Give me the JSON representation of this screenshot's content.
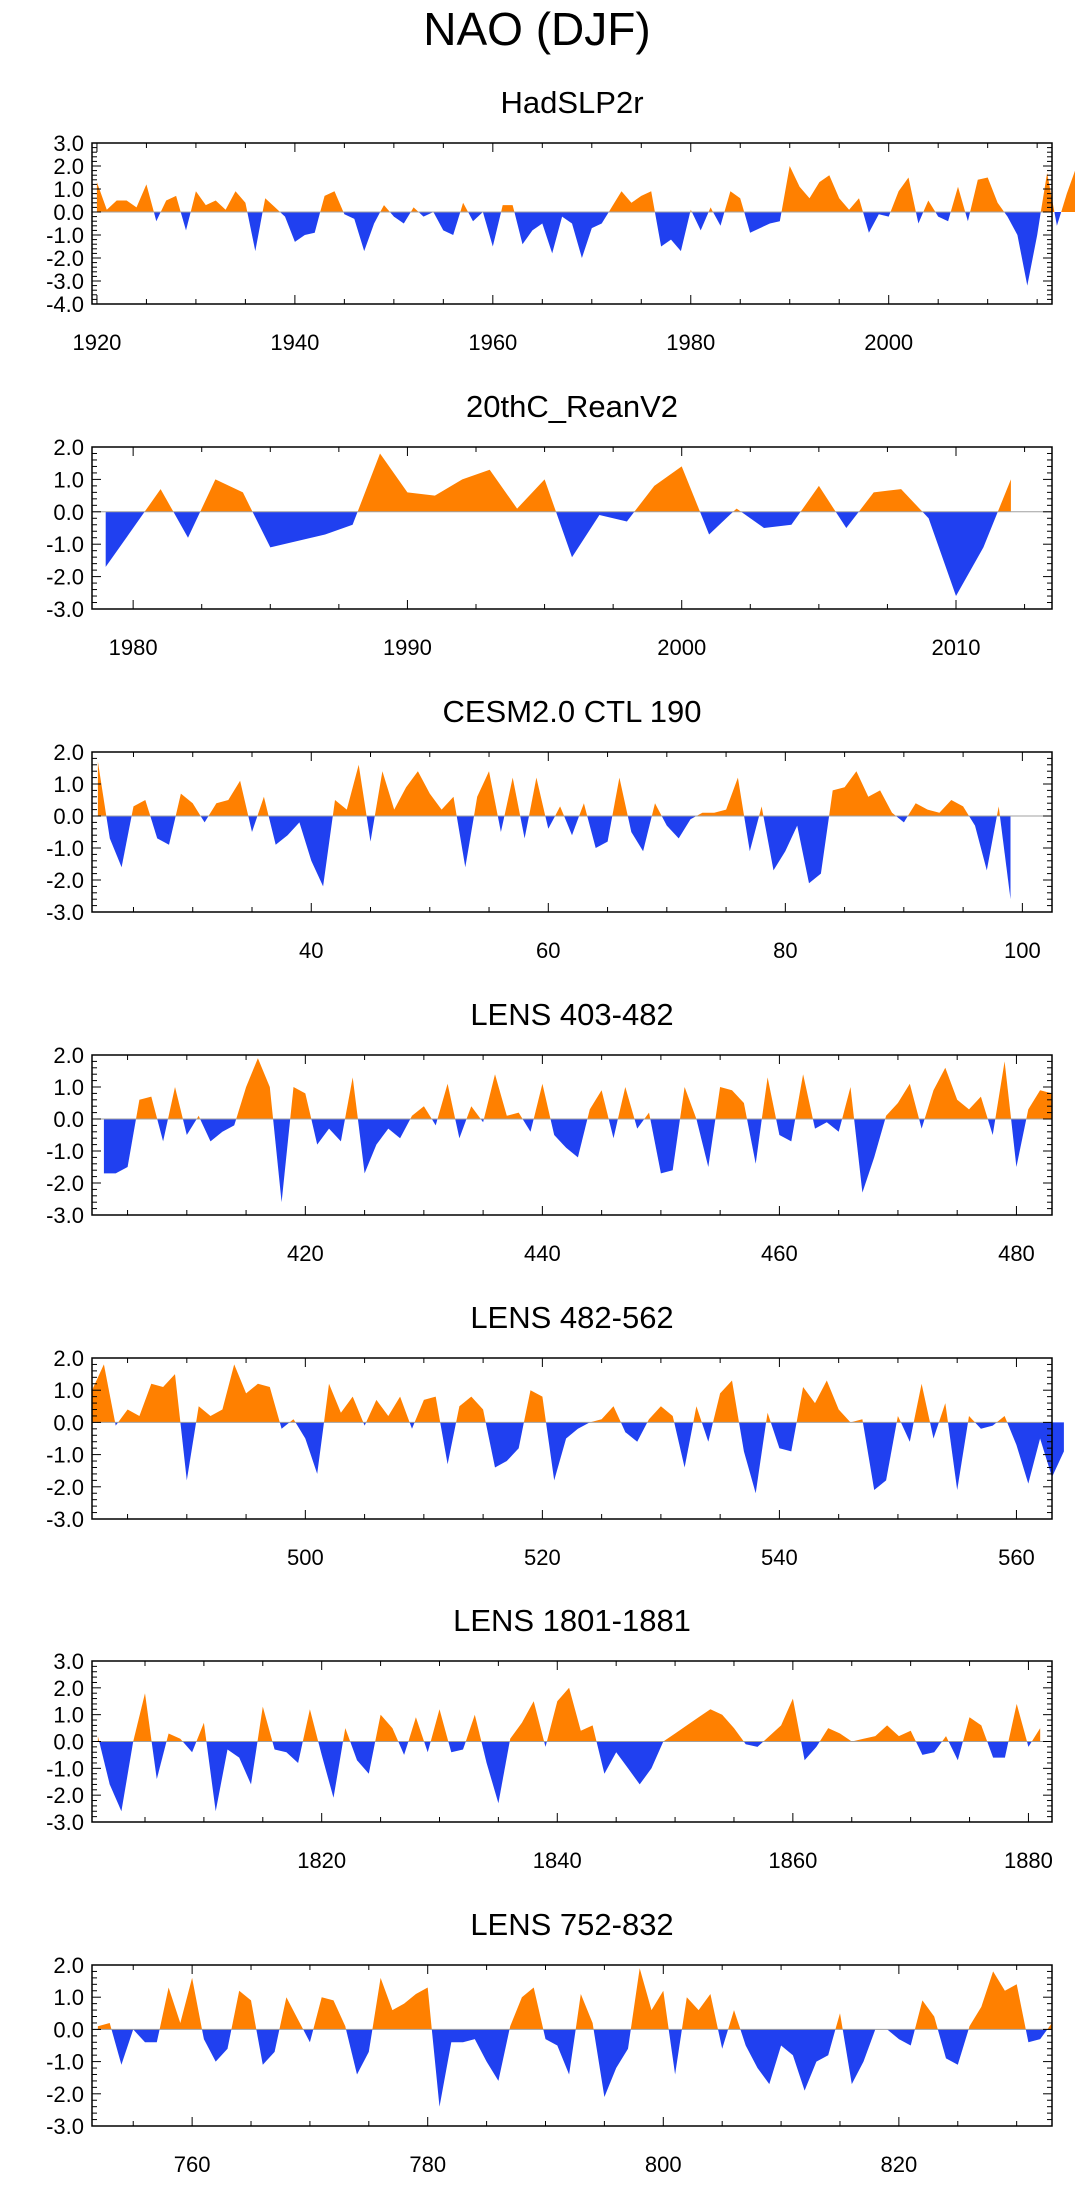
{
  "title": "NAO (DJF)",
  "colors": {
    "positive": "#FF8000",
    "negative": "#2040F0",
    "axis": "#000000",
    "zero": "#A0A0A0"
  },
  "chart_data": [
    {
      "type": "area",
      "title": "HadSLP2r",
      "xlim": [
        1919.5,
        2016.5
      ],
      "ylim": [
        -4,
        3
      ],
      "xticks": [
        1920,
        1940,
        1960,
        1980,
        2000
      ],
      "yticks": [
        3.0,
        2.0,
        1.0,
        0.0,
        -1.0,
        -2.0,
        -3.0,
        -4.0
      ],
      "ytick_labels": [
        "3.0",
        "2.0",
        "1.0",
        "0.0",
        "-1.0",
        "-2.0",
        "-3.0",
        "-4.0"
      ],
      "x_start": 1920,
      "values": [
        1.3,
        0.1,
        0.5,
        0.5,
        0.2,
        1.2,
        -0.4,
        0.5,
        0.7,
        -0.8,
        0.9,
        0.3,
        0.5,
        0.1,
        0.9,
        0.4,
        -1.7,
        0.6,
        0.2,
        -0.2,
        -1.3,
        -1.0,
        -0.9,
        0.7,
        0.9,
        -0.1,
        -0.3,
        -1.7,
        -0.5,
        0.3,
        -0.2,
        -0.5,
        0.2,
        -0.2,
        0.0,
        -0.8,
        -1.0,
        0.4,
        -0.4,
        0.0,
        -1.5,
        0.3,
        0.3,
        -1.4,
        -0.8,
        -0.5,
        -1.8,
        -0.2,
        -0.5,
        -2.0,
        -0.7,
        -0.5,
        0.2,
        0.9,
        0.4,
        0.7,
        0.9,
        -1.5,
        -1.2,
        -1.7,
        0.1,
        -0.8,
        0.2,
        -0.6,
        0.9,
        0.6,
        -0.9,
        -0.7,
        -0.5,
        -0.4,
        2.0,
        1.1,
        0.6,
        1.3,
        1.6,
        0.6,
        0.1,
        0.6,
        -0.9,
        -0.1,
        -0.2,
        0.9,
        1.5,
        -0.5,
        0.5,
        -0.2,
        -0.4,
        1.1,
        -0.4,
        1.4,
        1.5,
        0.4,
        -0.2,
        -1.0,
        -3.2,
        -1.0,
        1.7,
        -0.6,
        0.8,
        2.0
      ]
    },
    {
      "type": "area",
      "title": "20thC_ReanV2",
      "xlim": [
        1978.5,
        2013.5
      ],
      "ylim": [
        -3,
        2
      ],
      "xticks": [
        1980,
        1990,
        2000,
        2010
      ],
      "yticks": [
        2.0,
        1.0,
        0.0,
        -1.0,
        -2.0,
        -3.0
      ],
      "ytick_labels": [
        "2.0",
        "1.0",
        "0.0",
        "-1.0",
        "-2.0",
        "-3.0"
      ],
      "x": [
        1979,
        1981,
        1982,
        1983,
        1984,
        1985,
        1987,
        1988,
        1989,
        1990,
        1991,
        1992,
        1993,
        1994,
        1995,
        1996,
        1997,
        1998,
        1999,
        2000,
        2001,
        2002,
        2003,
        2004,
        2005,
        2006,
        2007,
        2008,
        2009,
        2010,
        2011,
        2012
      ],
      "values": [
        -1.7,
        0.7,
        -0.8,
        1.0,
        0.6,
        -1.1,
        -0.7,
        -0.4,
        1.8,
        0.6,
        0.5,
        1.0,
        1.3,
        0.1,
        1.0,
        -1.4,
        -0.1,
        -0.3,
        0.8,
        1.4,
        -0.7,
        0.1,
        -0.5,
        -0.4,
        0.8,
        -0.5,
        0.6,
        0.7,
        -0.2,
        -2.6,
        -1.1,
        1.0
      ]
    },
    {
      "type": "area",
      "title": "CESM2.0 CTL 190",
      "xlim": [
        21.5,
        102.5
      ],
      "ylim": [
        -3,
        2
      ],
      "xticks": [
        40,
        60,
        80,
        100
      ],
      "yticks": [
        2.0,
        1.0,
        0.0,
        -1.0,
        -2.0,
        -3.0
      ],
      "ytick_labels": [
        "2.0",
        "1.0",
        "0.0",
        "-1.0",
        "-2.0",
        "-3.0"
      ],
      "x_start": 22,
      "values": [
        1.7,
        -0.7,
        -1.6,
        0.3,
        0.5,
        -0.7,
        -0.9,
        0.7,
        0.4,
        -0.2,
        0.4,
        0.5,
        1.1,
        -0.5,
        0.6,
        -0.9,
        -0.6,
        -0.2,
        -1.4,
        -2.2,
        0.5,
        0.2,
        1.6,
        -0.8,
        1.4,
        0.2,
        0.9,
        1.4,
        0.7,
        0.2,
        0.6,
        -1.6,
        0.6,
        1.4,
        -0.5,
        1.2,
        -0.7,
        1.2,
        -0.4,
        0.3,
        -0.6,
        0.4,
        -1.0,
        -0.8,
        1.2,
        -0.5,
        -1.1,
        0.4,
        -0.3,
        -0.7,
        -0.1,
        0.1,
        0.1,
        0.2,
        1.2,
        -1.1,
        0.3,
        -1.7,
        -1.1,
        -0.3,
        -2.1,
        -1.8,
        0.8,
        0.9,
        1.4,
        0.6,
        0.8,
        0.1,
        -0.2,
        0.4,
        0.2,
        0.1,
        0.5,
        0.3,
        -0.3,
        -1.7,
        0.3,
        -2.6
      ]
    },
    {
      "type": "area",
      "title": "LENS 403-482",
      "xlim": [
        402,
        483
      ],
      "ylim": [
        -3,
        2
      ],
      "xticks": [
        420,
        440,
        460,
        480
      ],
      "yticks": [
        2.0,
        1.0,
        0.0,
        -1.0,
        -2.0,
        -3.0
      ],
      "ytick_labels": [
        "2.0",
        "1.0",
        "0.0",
        "-1.0",
        "-2.0",
        "-3.0"
      ],
      "x_start": 403,
      "values": [
        -1.7,
        -1.7,
        -1.5,
        0.6,
        0.7,
        -0.7,
        1.0,
        -0.5,
        0.1,
        -0.7,
        -0.4,
        -0.2,
        1.0,
        1.9,
        1.0,
        -2.6,
        1.0,
        0.8,
        -0.8,
        -0.3,
        -0.7,
        1.3,
        -1.7,
        -0.8,
        -0.3,
        -0.6,
        0.1,
        0.4,
        -0.2,
        1.1,
        -0.6,
        0.4,
        -0.1,
        1.4,
        0.1,
        0.2,
        -0.4,
        1.1,
        -0.5,
        -0.9,
        -1.2,
        0.3,
        0.9,
        -0.6,
        1.0,
        -0.3,
        0.2,
        -1.7,
        -1.6,
        1.0,
        0.0,
        -1.5,
        1.0,
        0.9,
        0.5,
        -1.4,
        1.3,
        -0.5,
        -0.7,
        1.4,
        -0.3,
        -0.1,
        -0.4,
        1.0,
        -2.3,
        -1.2,
        0.1,
        0.5,
        1.1,
        -0.3,
        0.9,
        1.6,
        0.6,
        0.3,
        0.7,
        -0.5,
        1.8,
        -1.5,
        0.3,
        0.9,
        0.8
      ]
    },
    {
      "type": "area",
      "title": "LENS 482-562",
      "xlim": [
        482,
        563
      ],
      "ylim": [
        -3,
        2
      ],
      "xticks": [
        500,
        520,
        540,
        560
      ],
      "yticks": [
        2.0,
        1.0,
        0.0,
        -1.0,
        -2.0,
        -3.0
      ],
      "ytick_labels": [
        "2.0",
        "1.0",
        "0.0",
        "-1.0",
        "-2.0",
        "-3.0"
      ],
      "x_start": 482,
      "values": [
        1.0,
        1.8,
        -0.1,
        0.4,
        0.2,
        1.2,
        1.1,
        1.5,
        -1.8,
        0.5,
        0.2,
        0.4,
        1.8,
        0.9,
        1.2,
        1.1,
        -0.2,
        0.1,
        -0.5,
        -1.6,
        1.2,
        0.3,
        0.8,
        -0.1,
        0.7,
        0.2,
        0.8,
        -0.2,
        0.7,
        0.8,
        -1.3,
        0.5,
        0.8,
        0.4,
        -1.4,
        -1.2,
        -0.8,
        1.0,
        0.8,
        -1.8,
        -0.5,
        -0.2,
        0.0,
        0.1,
        0.5,
        -0.3,
        -0.6,
        0.1,
        0.5,
        0.2,
        -1.4,
        0.5,
        -0.6,
        0.9,
        1.3,
        -0.9,
        -2.2,
        0.3,
        -0.8,
        -0.9,
        1.1,
        0.6,
        1.3,
        0.4,
        0.0,
        0.1,
        -2.1,
        -1.8,
        0.2,
        -0.6,
        1.2,
        -0.5,
        0.6,
        -2.1,
        0.2,
        -0.2,
        -0.1,
        0.2,
        -0.7,
        -1.9,
        -0.5,
        -1.7,
        -0.9
      ]
    },
    {
      "type": "area",
      "title": "LENS 1801-1881",
      "xlim": [
        1800.5,
        1882
      ],
      "ylim": [
        -3,
        3
      ],
      "xticks": [
        1820,
        1840,
        1860,
        1880
      ],
      "yticks": [
        3.0,
        2.0,
        1.0,
        0.0,
        -1.0,
        -2.0,
        -3.0
      ],
      "ytick_labels": [
        "3.0",
        "2.0",
        "1.0",
        "0.0",
        "-1.0",
        "-2.0",
        "-3.0"
      ],
      "x_start": 1801,
      "values": [
        0.2,
        -1.6,
        -2.6,
        0.0,
        1.8,
        -1.4,
        0.3,
        0.1,
        -0.4,
        0.7,
        -2.6,
        -0.3,
        -0.6,
        -1.6,
        1.3,
        -0.3,
        -0.4,
        -0.8,
        1.2,
        -0.5,
        -2.1,
        0.5,
        -0.7,
        -1.2,
        1.0,
        0.5,
        -0.5,
        0.9,
        -0.4,
        1.2,
        -0.4,
        -0.3,
        1.0,
        -0.8,
        -2.3,
        0.1,
        0.7,
        1.5,
        -0.2,
        1.5,
        2.0,
        0.4,
        0.6,
        -1.2,
        -0.4,
        -1.0,
        -1.6,
        -1.0,
        0.0,
        0.3,
        0.6,
        0.9,
        1.2,
        1.0,
        0.5,
        -0.1,
        -0.2,
        0.2,
        0.6,
        1.6,
        -0.7,
        -0.2,
        0.5,
        0.3,
        0.0,
        0.1,
        0.2,
        0.6,
        0.2,
        0.4,
        -0.5,
        -0.4,
        0.2,
        -0.7,
        0.9,
        0.6,
        -0.6,
        -0.6,
        1.4,
        -0.2,
        0.5
      ]
    },
    {
      "type": "area",
      "title": "LENS 752-832",
      "xlim": [
        751.5,
        833
      ],
      "ylim": [
        -3,
        2
      ],
      "xticks": [
        760,
        780,
        800,
        820
      ],
      "yticks": [
        2.0,
        1.0,
        0.0,
        -1.0,
        -2.0,
        -3.0
      ],
      "ytick_labels": [
        "2.0",
        "1.0",
        "0.0",
        "-1.0",
        "-2.0",
        "-3.0"
      ],
      "x_start": 752,
      "values": [
        0.1,
        0.2,
        -1.1,
        0.0,
        -0.4,
        -0.4,
        1.3,
        0.2,
        1.6,
        -0.3,
        -1.0,
        -0.6,
        1.2,
        0.9,
        -1.1,
        -0.7,
        1.0,
        0.3,
        -0.4,
        1.0,
        0.9,
        0.1,
        -1.4,
        -0.7,
        1.6,
        0.6,
        0.8,
        1.1,
        1.3,
        -2.4,
        -0.4,
        -0.4,
        -0.3,
        -1.0,
        -1.6,
        0.1,
        1.0,
        1.3,
        -0.3,
        -0.5,
        -1.4,
        1.1,
        0.2,
        -2.1,
        -1.2,
        -0.6,
        1.9,
        0.6,
        1.2,
        -1.4,
        1.0,
        0.6,
        1.1,
        -0.6,
        0.6,
        -0.5,
        -1.2,
        -1.7,
        -0.5,
        -0.8,
        -1.9,
        -1.0,
        -0.8,
        0.5,
        -1.7,
        -1.0,
        0.0,
        0.0,
        -0.3,
        -0.5,
        0.9,
        0.4,
        -0.9,
        -1.1,
        0.1,
        0.7,
        1.8,
        1.2,
        1.4,
        -0.4,
        -0.3,
        0.2
      ]
    }
  ]
}
